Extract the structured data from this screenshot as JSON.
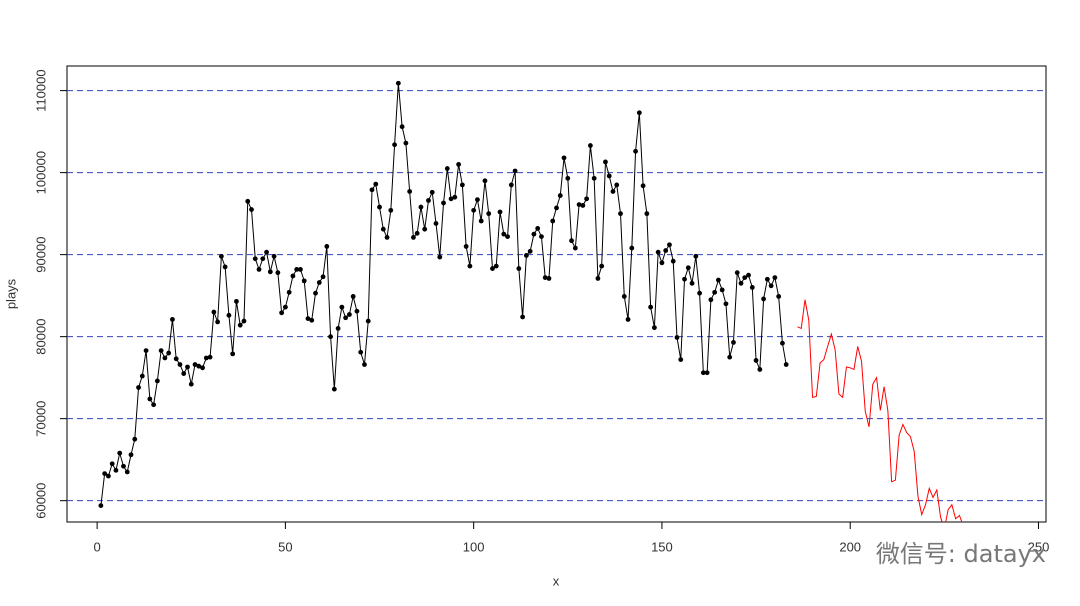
{
  "chart_data": {
    "type": "line",
    "xlabel": "x",
    "ylabel": "plays",
    "xlim": [
      -8,
      252
    ],
    "ylim": [
      57400,
      113000
    ],
    "xticks": [
      0,
      50,
      100,
      150,
      200,
      250
    ],
    "yticks": [
      60000,
      70000,
      80000,
      90000,
      100000,
      110000
    ],
    "grid": true,
    "grid_color": "#3344bb",
    "series": [
      {
        "color": "#000000",
        "markers": true,
        "x": [
          1,
          2,
          3,
          4,
          5,
          6,
          7,
          8,
          9,
          10,
          11,
          12,
          13,
          14,
          15,
          16,
          17,
          18,
          19,
          20,
          21,
          22,
          23,
          24,
          25,
          26,
          27,
          28,
          29,
          30,
          31,
          32,
          33,
          34,
          35,
          36,
          37,
          38,
          39,
          40,
          41,
          42,
          43,
          44,
          45,
          46,
          47,
          48,
          49,
          50,
          51,
          52,
          53,
          54,
          55,
          56,
          57,
          58,
          59,
          60,
          61,
          62,
          63,
          64,
          65,
          66,
          67,
          68,
          69,
          70,
          71,
          72,
          73,
          74,
          75,
          76,
          77,
          78,
          79,
          80,
          81,
          82,
          83,
          84,
          85,
          86,
          87,
          88,
          89,
          90,
          91,
          92,
          93,
          94,
          95,
          96,
          97,
          98,
          99,
          100,
          101,
          102,
          103,
          104,
          105,
          106,
          107,
          108,
          109,
          110,
          111,
          112,
          113,
          114,
          115,
          116,
          117,
          118,
          119,
          120,
          121,
          122,
          123,
          124,
          125,
          126,
          127,
          128,
          129,
          130,
          131,
          132,
          133,
          134,
          135,
          136,
          137,
          138,
          139,
          140,
          141,
          142,
          143,
          144,
          145,
          146,
          147,
          148,
          149,
          150,
          151,
          152,
          153,
          154,
          155,
          156,
          157,
          158,
          159,
          160,
          161,
          162,
          163,
          164,
          165,
          166,
          167,
          168,
          169,
          170,
          171,
          172,
          173,
          174,
          175,
          176,
          177,
          178,
          179,
          180,
          181,
          182,
          183
        ],
        "values": [
          59400,
          63300,
          63000,
          64500,
          63700,
          65800,
          64200,
          63500,
          65600,
          67500,
          73800,
          75200,
          78300,
          72400,
          71700,
          74600,
          78300,
          77400,
          78000,
          82100,
          77300,
          76600,
          75500,
          76300,
          74200,
          76600,
          76400,
          76200,
          77400,
          77500,
          83000,
          81800,
          89800,
          88500,
          82600,
          77900,
          84300,
          81400,
          81900,
          96500,
          95500,
          89500,
          88200,
          89500,
          90300,
          87900,
          89800,
          87800,
          82900,
          83600,
          85400,
          87400,
          88200,
          88200,
          86800,
          82200,
          82000,
          85300,
          86600,
          87300,
          91000,
          80000,
          73600,
          81000,
          83600,
          82300,
          82700,
          84900,
          83100,
          78100,
          76600,
          81900,
          97900,
          98600,
          95800,
          93100,
          92100,
          95400,
          103400,
          110900,
          105600,
          103600,
          97700,
          92100,
          92600,
          95800,
          93100,
          96600,
          97600,
          93800,
          89700,
          96300,
          100500,
          96800,
          97000,
          101000,
          98500,
          91000,
          88600,
          95400,
          96700,
          94100,
          99000,
          95000,
          88300,
          88600,
          95200,
          92500,
          92200,
          98500,
          100200,
          88300,
          82400,
          89900,
          90400,
          92500,
          93200,
          92200,
          87200,
          87100,
          94100,
          95700,
          97200,
          101800,
          99300,
          91700,
          90800,
          96100,
          96000,
          96800,
          103300,
          99300,
          87100,
          88600,
          101300,
          99600,
          97700,
          98500,
          95000,
          84900,
          82100,
          90800,
          102600,
          107300,
          98400,
          95000,
          83600,
          81100,
          90300,
          89000,
          90500,
          91200,
          89200,
          79900,
          77200,
          87000,
          88400,
          86500,
          89800,
          85300,
          75600,
          75600,
          84500,
          85400,
          86900,
          85700,
          84000,
          77500,
          79300,
          87800,
          86500,
          87200,
          87500,
          86000,
          77100,
          76000,
          84600,
          87000,
          86200,
          87200,
          84900,
          79200,
          76600
        ]
      },
      {
        "color": "#ff0000",
        "markers": false,
        "x": [
          186,
          187,
          188,
          189,
          190,
          191,
          192,
          193,
          194,
          195,
          196,
          197,
          198,
          199,
          200,
          201,
          202,
          203,
          204,
          205,
          206,
          207,
          208,
          209,
          210,
          211,
          212,
          213,
          214,
          215,
          216,
          217,
          218,
          219,
          220,
          221,
          222,
          223,
          224,
          225,
          226,
          227,
          228,
          229,
          230
        ],
        "values": [
          81200,
          81000,
          84500,
          82000,
          72600,
          72700,
          76800,
          77200,
          78800,
          80300,
          78400,
          73000,
          72600,
          76300,
          76200,
          76000,
          78800,
          77000,
          70900,
          69000,
          74200,
          75000,
          71000,
          73900,
          71000,
          62300,
          62500,
          68000,
          69300,
          68300,
          67800,
          66000,
          60500,
          58300,
          59500,
          61500,
          60400,
          61300,
          58000,
          56500,
          58900,
          59500,
          57800,
          58200,
          57000
        ]
      }
    ]
  },
  "watermark": "微信号: datayx"
}
